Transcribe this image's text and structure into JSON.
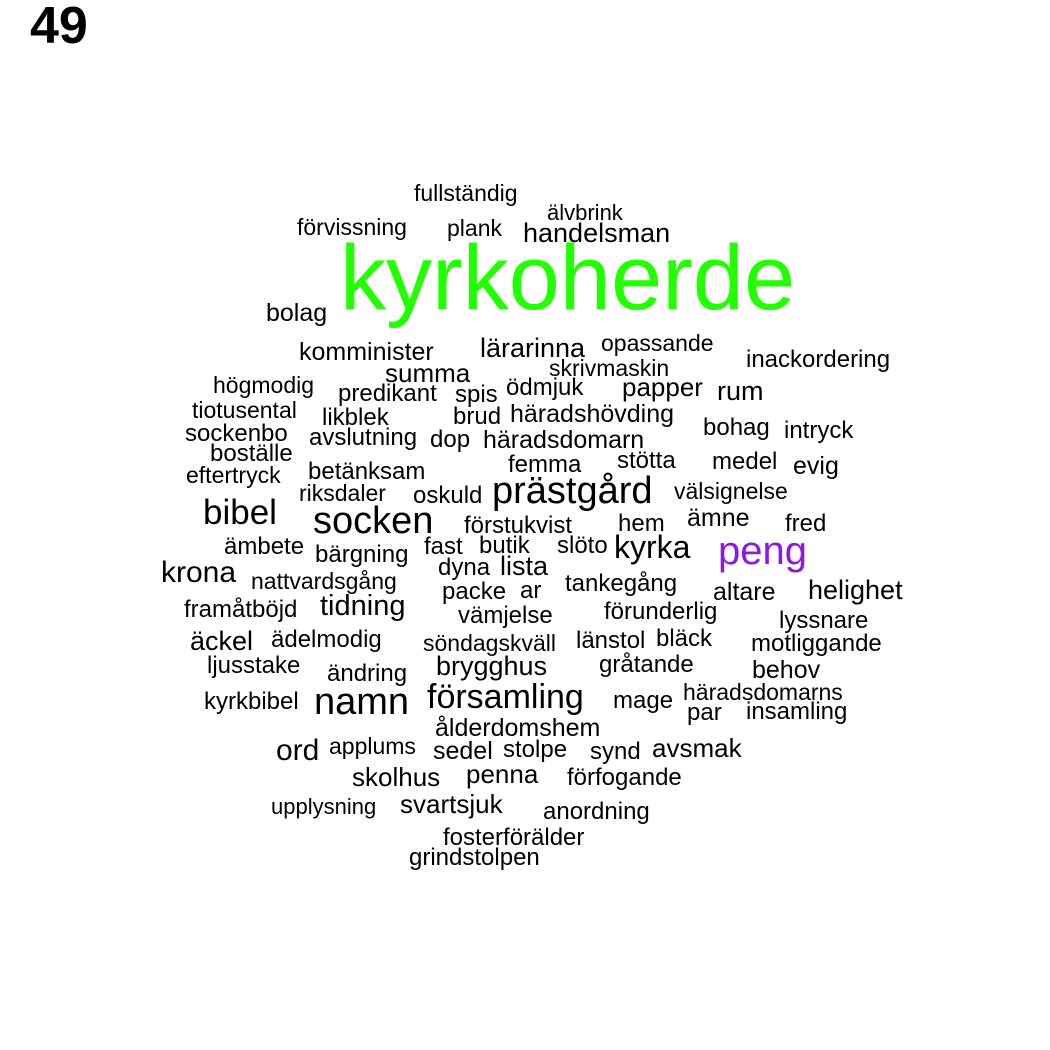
{
  "page_number": "49",
  "colors": {
    "default": "#000000",
    "highlight_green": "#22ff00",
    "highlight_purple": "#8f17e6"
  },
  "words": [
    {
      "text": "kyrkoherde",
      "color": "#22ff00"
    },
    {
      "text": "peng",
      "color": "#8f17e6"
    },
    {
      "text": "prästgård"
    },
    {
      "text": "socken"
    },
    {
      "text": "bibel"
    },
    {
      "text": "namn"
    },
    {
      "text": "församling"
    },
    {
      "text": "kyrka"
    },
    {
      "text": "krona"
    },
    {
      "text": "tidning"
    },
    {
      "text": "ord"
    },
    {
      "text": "fullständig"
    },
    {
      "text": "älvbrink"
    },
    {
      "text": "förvissning"
    },
    {
      "text": "plank"
    },
    {
      "text": "handelsman"
    },
    {
      "text": "bolag"
    },
    {
      "text": "komminister"
    },
    {
      "text": "lärarinna"
    },
    {
      "text": "opassande"
    },
    {
      "text": "inackordering"
    },
    {
      "text": "summa"
    },
    {
      "text": "skrivmaskin"
    },
    {
      "text": "högmodig"
    },
    {
      "text": "predikant"
    },
    {
      "text": "spis"
    },
    {
      "text": "ödmjuk"
    },
    {
      "text": "papper"
    },
    {
      "text": "rum"
    },
    {
      "text": "tiotusental"
    },
    {
      "text": "likblek"
    },
    {
      "text": "brud"
    },
    {
      "text": "häradshövding"
    },
    {
      "text": "sockenbo"
    },
    {
      "text": "avslutning"
    },
    {
      "text": "dop"
    },
    {
      "text": "häradsdomarn"
    },
    {
      "text": "bohag"
    },
    {
      "text": "intryck"
    },
    {
      "text": "boställe"
    },
    {
      "text": "femma"
    },
    {
      "text": "stötta"
    },
    {
      "text": "medel"
    },
    {
      "text": "evig"
    },
    {
      "text": "eftertryck"
    },
    {
      "text": "betänksam"
    },
    {
      "text": "riksdaler"
    },
    {
      "text": "oskuld"
    },
    {
      "text": "välsignelse"
    },
    {
      "text": "förstukvist"
    },
    {
      "text": "hem"
    },
    {
      "text": "ämne"
    },
    {
      "text": "fred"
    },
    {
      "text": "ämbete"
    },
    {
      "text": "bärgning"
    },
    {
      "text": "fast"
    },
    {
      "text": "butik"
    },
    {
      "text": "slöto"
    },
    {
      "text": "dyna"
    },
    {
      "text": "lista"
    },
    {
      "text": "nattvardsgång"
    },
    {
      "text": "packe"
    },
    {
      "text": "ar"
    },
    {
      "text": "tankegång"
    },
    {
      "text": "altare"
    },
    {
      "text": "helighet"
    },
    {
      "text": "framåtböjd"
    },
    {
      "text": "vämjelse"
    },
    {
      "text": "förunderlig"
    },
    {
      "text": "lyssnare"
    },
    {
      "text": "äckel"
    },
    {
      "text": "ädelmodig"
    },
    {
      "text": "söndagskväll"
    },
    {
      "text": "länstol"
    },
    {
      "text": "bläck"
    },
    {
      "text": "motliggande"
    },
    {
      "text": "ljusstake"
    },
    {
      "text": "ändring"
    },
    {
      "text": "brygghus"
    },
    {
      "text": "gråtande"
    },
    {
      "text": "behov"
    },
    {
      "text": "kyrkbibel"
    },
    {
      "text": "mage"
    },
    {
      "text": "häradsdomarns"
    },
    {
      "text": "par"
    },
    {
      "text": "insamling"
    },
    {
      "text": "ålderdomshem"
    },
    {
      "text": "applums"
    },
    {
      "text": "sedel"
    },
    {
      "text": "stolpe"
    },
    {
      "text": "synd"
    },
    {
      "text": "avsmak"
    },
    {
      "text": "skolhus"
    },
    {
      "text": "penna"
    },
    {
      "text": "förfogande"
    },
    {
      "text": "upplysning"
    },
    {
      "text": "svartsjuk"
    },
    {
      "text": "anordning"
    },
    {
      "text": "fosterförälder"
    },
    {
      "text": "grindstolpen"
    }
  ]
}
